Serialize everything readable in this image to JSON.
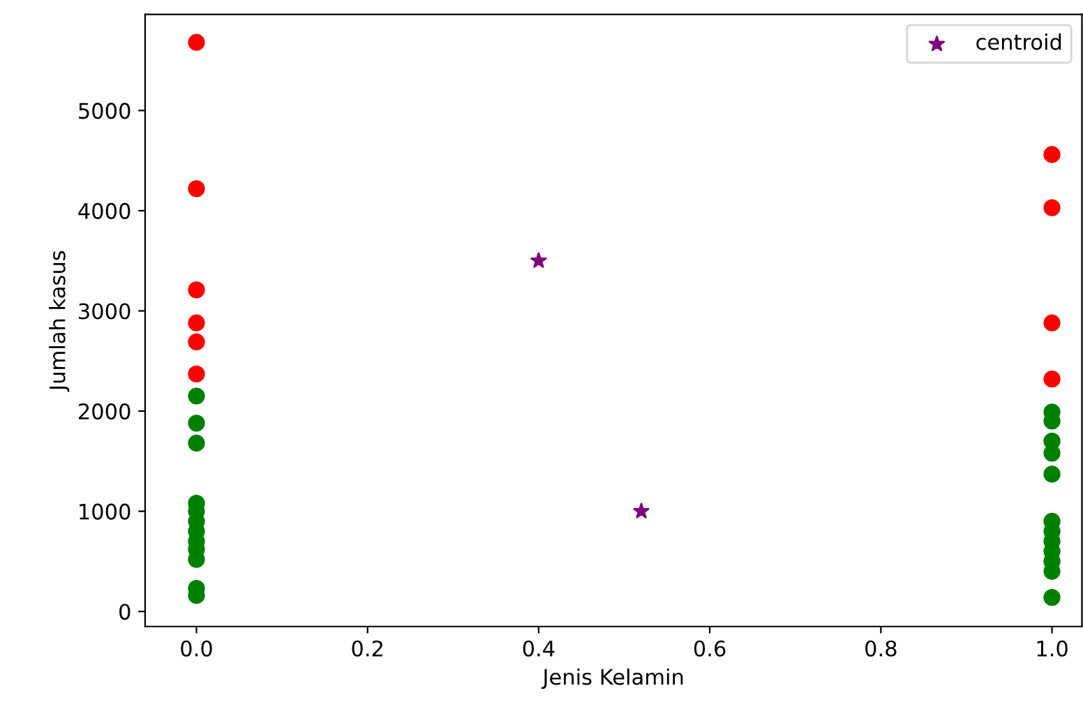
{
  "chart_data": {
    "type": "scatter",
    "xlabel": "Jenis Kelamin",
    "ylabel": "Jumlah kasus",
    "xlim": [
      -0.06,
      1.035
    ],
    "ylim": [
      -150,
      5960
    ],
    "xticks": [
      {
        "value": 0,
        "label": "0.0"
      },
      {
        "value": 0.2,
        "label": "0.2"
      },
      {
        "value": 0.4,
        "label": "0.4"
      },
      {
        "value": 0.6,
        "label": "0.6"
      },
      {
        "value": 0.8,
        "label": "0.8"
      },
      {
        "value": 1,
        "label": "1.0"
      }
    ],
    "yticks": [
      0,
      1000,
      2000,
      3000,
      4000,
      5000
    ],
    "legend": "top right",
    "grid": false,
    "series": [
      {
        "color": "#ff0000",
        "marker": "circle",
        "x": [
          0,
          0,
          0,
          0,
          0,
          0,
          1,
          1,
          1,
          1
        ],
        "values": [
          5680,
          4220,
          3210,
          2880,
          2690,
          2370,
          4560,
          4030,
          2880,
          2320
        ]
      },
      {
        "color": "#008000",
        "marker": "circle",
        "x": [
          0,
          0,
          0,
          0,
          0,
          0,
          0,
          0,
          0,
          0,
          0,
          0,
          1,
          1,
          1,
          1,
          1,
          1,
          1,
          1,
          1,
          1,
          1,
          1
        ],
        "values": [
          2150,
          1880,
          1680,
          1080,
          1000,
          900,
          800,
          700,
          620,
          520,
          230,
          160,
          1990,
          1900,
          1700,
          1580,
          1370,
          900,
          800,
          700,
          600,
          500,
          400,
          140
        ]
      },
      {
        "name": "centroid",
        "color": "#800080",
        "marker": "star",
        "x": [
          0.4,
          0.52
        ],
        "values": [
          3500,
          1000
        ]
      }
    ]
  }
}
